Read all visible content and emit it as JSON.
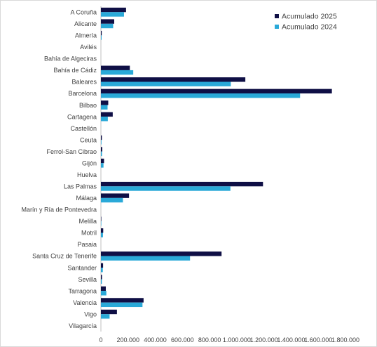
{
  "chart_data": {
    "type": "bar",
    "orientation": "horizontal",
    "title": "",
    "xlabel": "",
    "ylabel": "",
    "xlim": [
      0,
      1800000
    ],
    "x_ticks": [
      0,
      200000,
      400000,
      600000,
      800000,
      1000000,
      1200000,
      1400000,
      1600000,
      1800000
    ],
    "x_tick_labels": [
      "0",
      "200.000",
      "400.000",
      "600.000",
      "800.000",
      "1.000.000",
      "1.200.000",
      "1.400.000",
      "1.600.000",
      "1.800.000"
    ],
    "grid": false,
    "legend_position": "top-right",
    "categories": [
      "A Coruña",
      "Alicante",
      "Almería",
      "Avilés",
      "Bahía de Algeciras",
      "Bahía de Cádiz",
      "Baleares",
      "Barcelona",
      "Bilbao",
      "Cartagena",
      "Castellón",
      "Ceuta",
      "Ferrol-San Cibrao",
      "Gijón",
      "Huelva",
      "Las Palmas",
      "Málaga",
      "Marín y Ría de Pontevedra",
      "Melilla",
      "Motril",
      "Pasaia",
      "Santa Cruz de Tenerife",
      "Santander",
      "Sevilla",
      "Tarragona",
      "Valencia",
      "Vigo",
      "Vilagarcía"
    ],
    "series": [
      {
        "name": "Acumulado 2025",
        "color": "#0f0f45",
        "values": [
          185000,
          98000,
          6000,
          0,
          0,
          213000,
          1063000,
          1700000,
          54000,
          87000,
          0,
          7000,
          10000,
          23000,
          0,
          1193000,
          207000,
          0,
          3000,
          17000,
          0,
          888000,
          16000,
          8000,
          36000,
          314000,
          118000,
          0
        ]
      },
      {
        "name": "Acumulado 2024",
        "color": "#2aa9d8",
        "values": [
          170000,
          90000,
          5000,
          0,
          0,
          238000,
          956000,
          1466000,
          49000,
          51000,
          0,
          4000,
          8000,
          19000,
          0,
          953000,
          162000,
          0,
          3000,
          15000,
          0,
          656000,
          14000,
          7000,
          40000,
          306000,
          64000,
          0
        ]
      }
    ]
  }
}
